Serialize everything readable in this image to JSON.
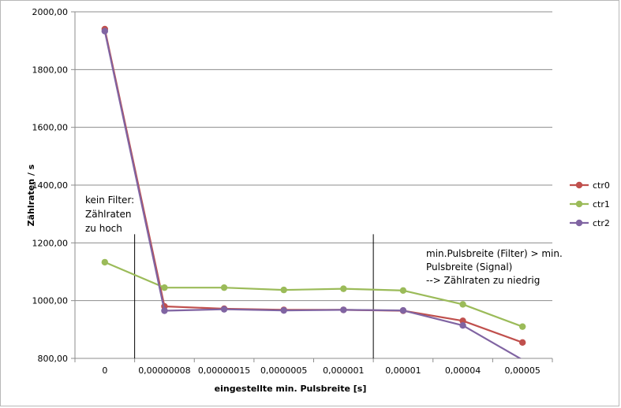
{
  "chart_data": {
    "type": "line",
    "title": "",
    "xlabel": "eingestellte min. Pulsbreite [s]",
    "ylabel": "Zählraten / s",
    "categories": [
      "0",
      "0,00000008",
      "0,00000015",
      "0,0000005",
      "0,000001",
      "0,00001",
      "0,00004",
      "0,00005"
    ],
    "ylim": [
      800,
      2000
    ],
    "yticks": [
      800,
      1000,
      1200,
      1400,
      1600,
      1800,
      2000
    ],
    "ytick_labels": [
      "800,00",
      "1000,00",
      "1200,00",
      "1400,00",
      "1600,00",
      "1800,00",
      "2000,00"
    ],
    "grid": true,
    "legend_position": "right",
    "series": [
      {
        "name": "ctr0",
        "color": "#c0504d",
        "values": [
          1940,
          980,
          972,
          968,
          968,
          965,
          930,
          855
        ]
      },
      {
        "name": "ctr1",
        "color": "#9bbb59",
        "values": [
          1133,
          1045,
          1045,
          1037,
          1041,
          1035,
          987,
          910
        ]
      },
      {
        "name": "ctr2",
        "color": "#8064a2",
        "values": [
          1933,
          965,
          970,
          966,
          968,
          966,
          914,
          795
        ]
      }
    ],
    "annotations": [
      {
        "id": "left",
        "lines": [
          "kein Filter:",
          "Zählraten",
          "zu hoch"
        ]
      },
      {
        "id": "right",
        "lines": [
          "min.Pulsbreite (Filter) > min.",
          "Pulsbreite (Signal)",
          "--> Zählraten zu niedrig"
        ]
      }
    ],
    "markers": [
      {
        "x_between": [
          "0",
          "0,00000008"
        ],
        "y_top": 1230
      },
      {
        "x_between": [
          "0,000001",
          "0,00001"
        ],
        "y_top": 1230
      }
    ]
  }
}
